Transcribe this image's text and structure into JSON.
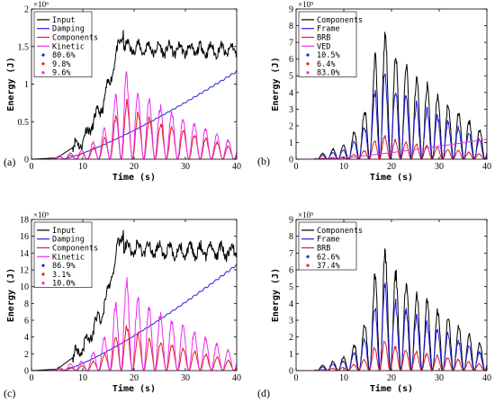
{
  "colors": {
    "black": "#000000",
    "blue": "#1f1fe0",
    "red": "#e01f1f",
    "magenta": "#ee2cee"
  },
  "chart_data": [
    {
      "panel_label": "(a)",
      "type": "line",
      "xlabel": "Time (s)",
      "ylabel": "Energy (J)",
      "exponent": "×10⁶",
      "xlim": [
        0,
        40
      ],
      "ylim": [
        0,
        2
      ],
      "xticks": [
        0,
        10,
        20,
        30,
        40
      ],
      "yticks": [
        0,
        0.5,
        1,
        1.5,
        2
      ],
      "ytick_labels": [
        "0",
        "0.5",
        "1",
        "1.5",
        "2"
      ],
      "legend": {
        "position": "top-left",
        "entries": [
          "Input",
          "Damping",
          "Components",
          "Kinetic"
        ],
        "dots": [
          "80.6%",
          "9.8%",
          "9.6%"
        ]
      },
      "series": [
        {
          "name": "Input",
          "color": "#000000",
          "kind": "input",
          "peak": 1.75,
          "settle": 1.45
        },
        {
          "name": "Damping",
          "color": "#1f1fe0",
          "kind": "damping",
          "end": 1.17
        },
        {
          "name": "Components",
          "color": "#e01f1f",
          "kind": "osc",
          "peak": 0.85
        },
        {
          "name": "Kinetic",
          "color": "#ee2cee",
          "kind": "osc",
          "peak": 1.25
        }
      ]
    },
    {
      "panel_label": "(b)",
      "type": "line",
      "xlabel": "Time (s)",
      "ylabel": "Energy (J)",
      "exponent": "×10⁵",
      "xlim": [
        0,
        40
      ],
      "ylim": [
        0,
        9
      ],
      "xticks": [
        0,
        10,
        20,
        30,
        40
      ],
      "yticks": [
        0,
        1,
        2,
        3,
        4,
        5,
        6,
        7,
        8,
        9
      ],
      "ytick_labels": [
        "0",
        "1",
        "2",
        "3",
        "4",
        "5",
        "6",
        "7",
        "8",
        "9"
      ],
      "legend": {
        "position": "top-left",
        "entries": [
          "Components",
          "Frame",
          "BRB",
          "VED"
        ],
        "dots": [
          "10.5%",
          "6.4%",
          "83.0%"
        ]
      },
      "series": [
        {
          "name": "Components",
          "color": "#000000",
          "kind": "osc",
          "peak": 8.8
        },
        {
          "name": "Frame",
          "color": "#1f1fe0",
          "kind": "osc",
          "peak": 5.9
        },
        {
          "name": "BRB",
          "color": "#e01f1f",
          "kind": "osc",
          "peak": 1.6
        },
        {
          "name": "VED",
          "color": "#ee2cee",
          "kind": "damping",
          "end": 1.2
        }
      ]
    },
    {
      "panel_label": "(c)",
      "type": "line",
      "xlabel": "Time (s)",
      "ylabel": "Energy (J)",
      "exponent": "×10⁵",
      "xlim": [
        0,
        40
      ],
      "ylim": [
        0,
        18
      ],
      "xticks": [
        0,
        10,
        20,
        30,
        40
      ],
      "yticks": [
        0,
        2,
        4,
        6,
        8,
        10,
        12,
        14,
        16,
        18
      ],
      "ytick_labels": [
        "0",
        "2",
        "4",
        "6",
        "8",
        "10",
        "12",
        "14",
        "16",
        "18"
      ],
      "legend": {
        "position": "top-left",
        "entries": [
          "Input",
          "Damping",
          "Components",
          "Kinetic"
        ],
        "dots": [
          "86.9%",
          "3.1%",
          "10.0%"
        ]
      },
      "series": [
        {
          "name": "Input",
          "color": "#000000",
          "kind": "input",
          "peak": 17.4,
          "settle": 14.2
        },
        {
          "name": "Damping",
          "color": "#1f1fe0",
          "kind": "damping",
          "end": 12.6
        },
        {
          "name": "Components",
          "color": "#e01f1f",
          "kind": "osc",
          "peak": 6.0
        },
        {
          "name": "Kinetic",
          "color": "#ee2cee",
          "kind": "osc",
          "peak": 12.0
        }
      ]
    },
    {
      "panel_label": "(d)",
      "type": "line",
      "xlabel": "Time (s)",
      "ylabel": "Energy (J)",
      "exponent": "×10⁵",
      "xlim": [
        0,
        40
      ],
      "ylim": [
        0,
        9
      ],
      "xticks": [
        0,
        10,
        20,
        30,
        40
      ],
      "yticks": [
        0,
        1,
        2,
        3,
        4,
        5,
        6,
        7,
        8,
        9
      ],
      "ytick_labels": [
        "0",
        "1",
        "2",
        "3",
        "4",
        "5",
        "6",
        "7",
        "8",
        "9"
      ],
      "legend": {
        "position": "top-left",
        "entries": [
          "Components",
          "Frame",
          "BRB"
        ],
        "dots": [
          "62.6%",
          "37.4%"
        ]
      },
      "series": [
        {
          "name": "Components",
          "color": "#000000",
          "kind": "osc",
          "peak": 8.2
        },
        {
          "name": "Frame",
          "color": "#1f1fe0",
          "kind": "osc",
          "peak": 5.7
        },
        {
          "name": "BRB",
          "color": "#e01f1f",
          "kind": "osc",
          "peak": 2.0
        }
      ]
    }
  ]
}
